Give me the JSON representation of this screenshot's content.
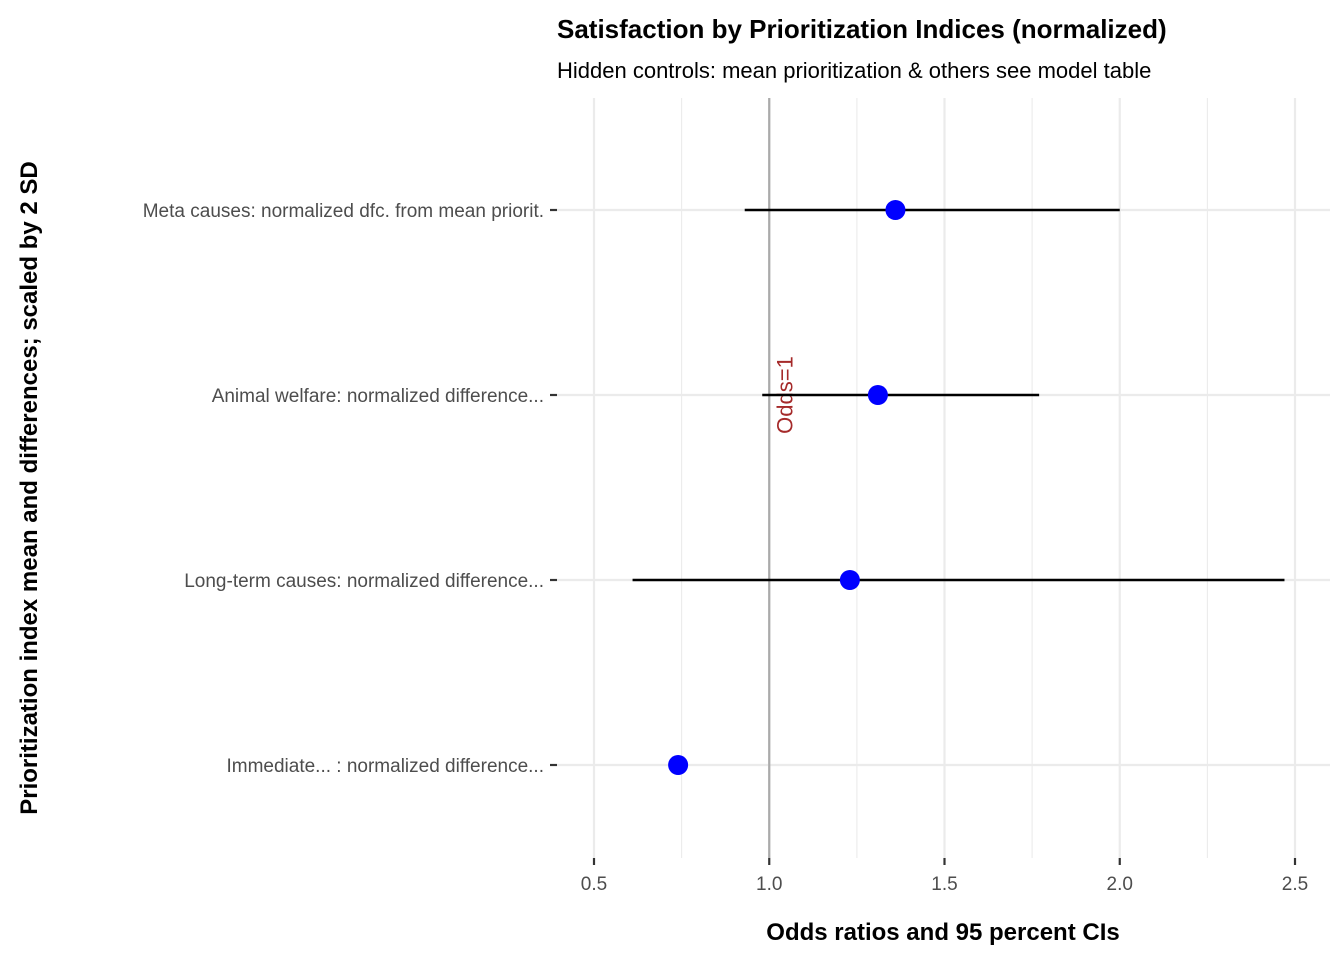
{
  "chart_data": {
    "type": "scatter",
    "title": "Satisfaction by Prioritization Indices (normalized)",
    "subtitle": "Hidden controls:  mean prioritization & others see model table",
    "xlabel": "Odds ratios and 95 percent CIs",
    "ylabel": "Prioritization index mean and differences; scaled by 2 SD",
    "xlim": [
      0.5,
      2.5
    ],
    "x_ticks": [
      "0.5",
      "1.0",
      "1.5",
      "2.0",
      "2.5"
    ],
    "x_tick_values": [
      0.5,
      1.0,
      1.5,
      2.0,
      2.5
    ],
    "grid": true,
    "reference_line": {
      "x": 1.0,
      "label": "Odds=1",
      "color": "#aaaaaa",
      "label_color": "#a52a2a"
    },
    "point_color": "#0000ff",
    "categories": [
      "Meta causes: normalized dfc. from mean priorit.",
      "Animal welfare: normalized difference...",
      "Long-term causes: normalized difference...",
      "Immediate... : normalized difference..."
    ],
    "points": [
      {
        "label": "Meta causes: normalized dfc. from mean priorit.",
        "estimate": 1.36,
        "ci_low": 0.93,
        "ci_high": 2.0
      },
      {
        "label": "Animal welfare: normalized difference...",
        "estimate": 1.31,
        "ci_low": 0.98,
        "ci_high": 1.77
      },
      {
        "label": "Long-term causes: normalized difference...",
        "estimate": 1.23,
        "ci_low": 0.61,
        "ci_high": 2.47
      },
      {
        "label": "Immediate... : normalized difference...",
        "estimate": 0.74,
        "ci_low": null,
        "ci_high": null
      }
    ]
  }
}
